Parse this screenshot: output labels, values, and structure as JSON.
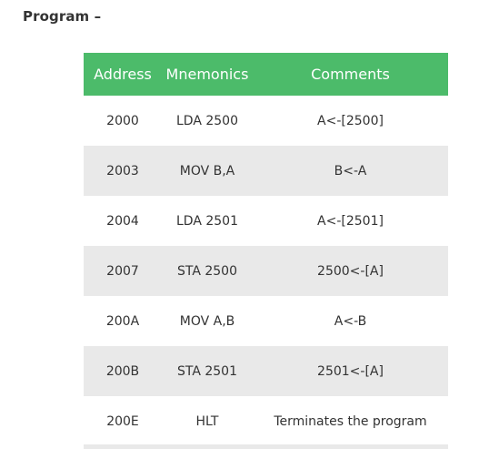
{
  "heading": "Program –",
  "table": {
    "headers": [
      "Address",
      "Mnemonics",
      "Comments"
    ],
    "rows": [
      {
        "address": "2000",
        "mnemonic": "LDA 2500",
        "comment": "A<-[2500]"
      },
      {
        "address": "2003",
        "mnemonic": "MOV B,A",
        "comment": "B<-A"
      },
      {
        "address": "2004",
        "mnemonic": "LDA 2501",
        "comment": "A<-[2501]"
      },
      {
        "address": "2007",
        "mnemonic": "STA 2500",
        "comment": "2500<-[A]"
      },
      {
        "address": "200A",
        "mnemonic": "MOV A,B",
        "comment": "A<-B"
      },
      {
        "address": "200B",
        "mnemonic": "STA 2501",
        "comment": "2501<-[A]"
      },
      {
        "address": "200E",
        "mnemonic": "HLT",
        "comment": "Terminates the program"
      }
    ]
  },
  "colors": {
    "header_background": "#4cbb6a",
    "striped_row_background": "#e9e9e9",
    "text": "#333333"
  }
}
